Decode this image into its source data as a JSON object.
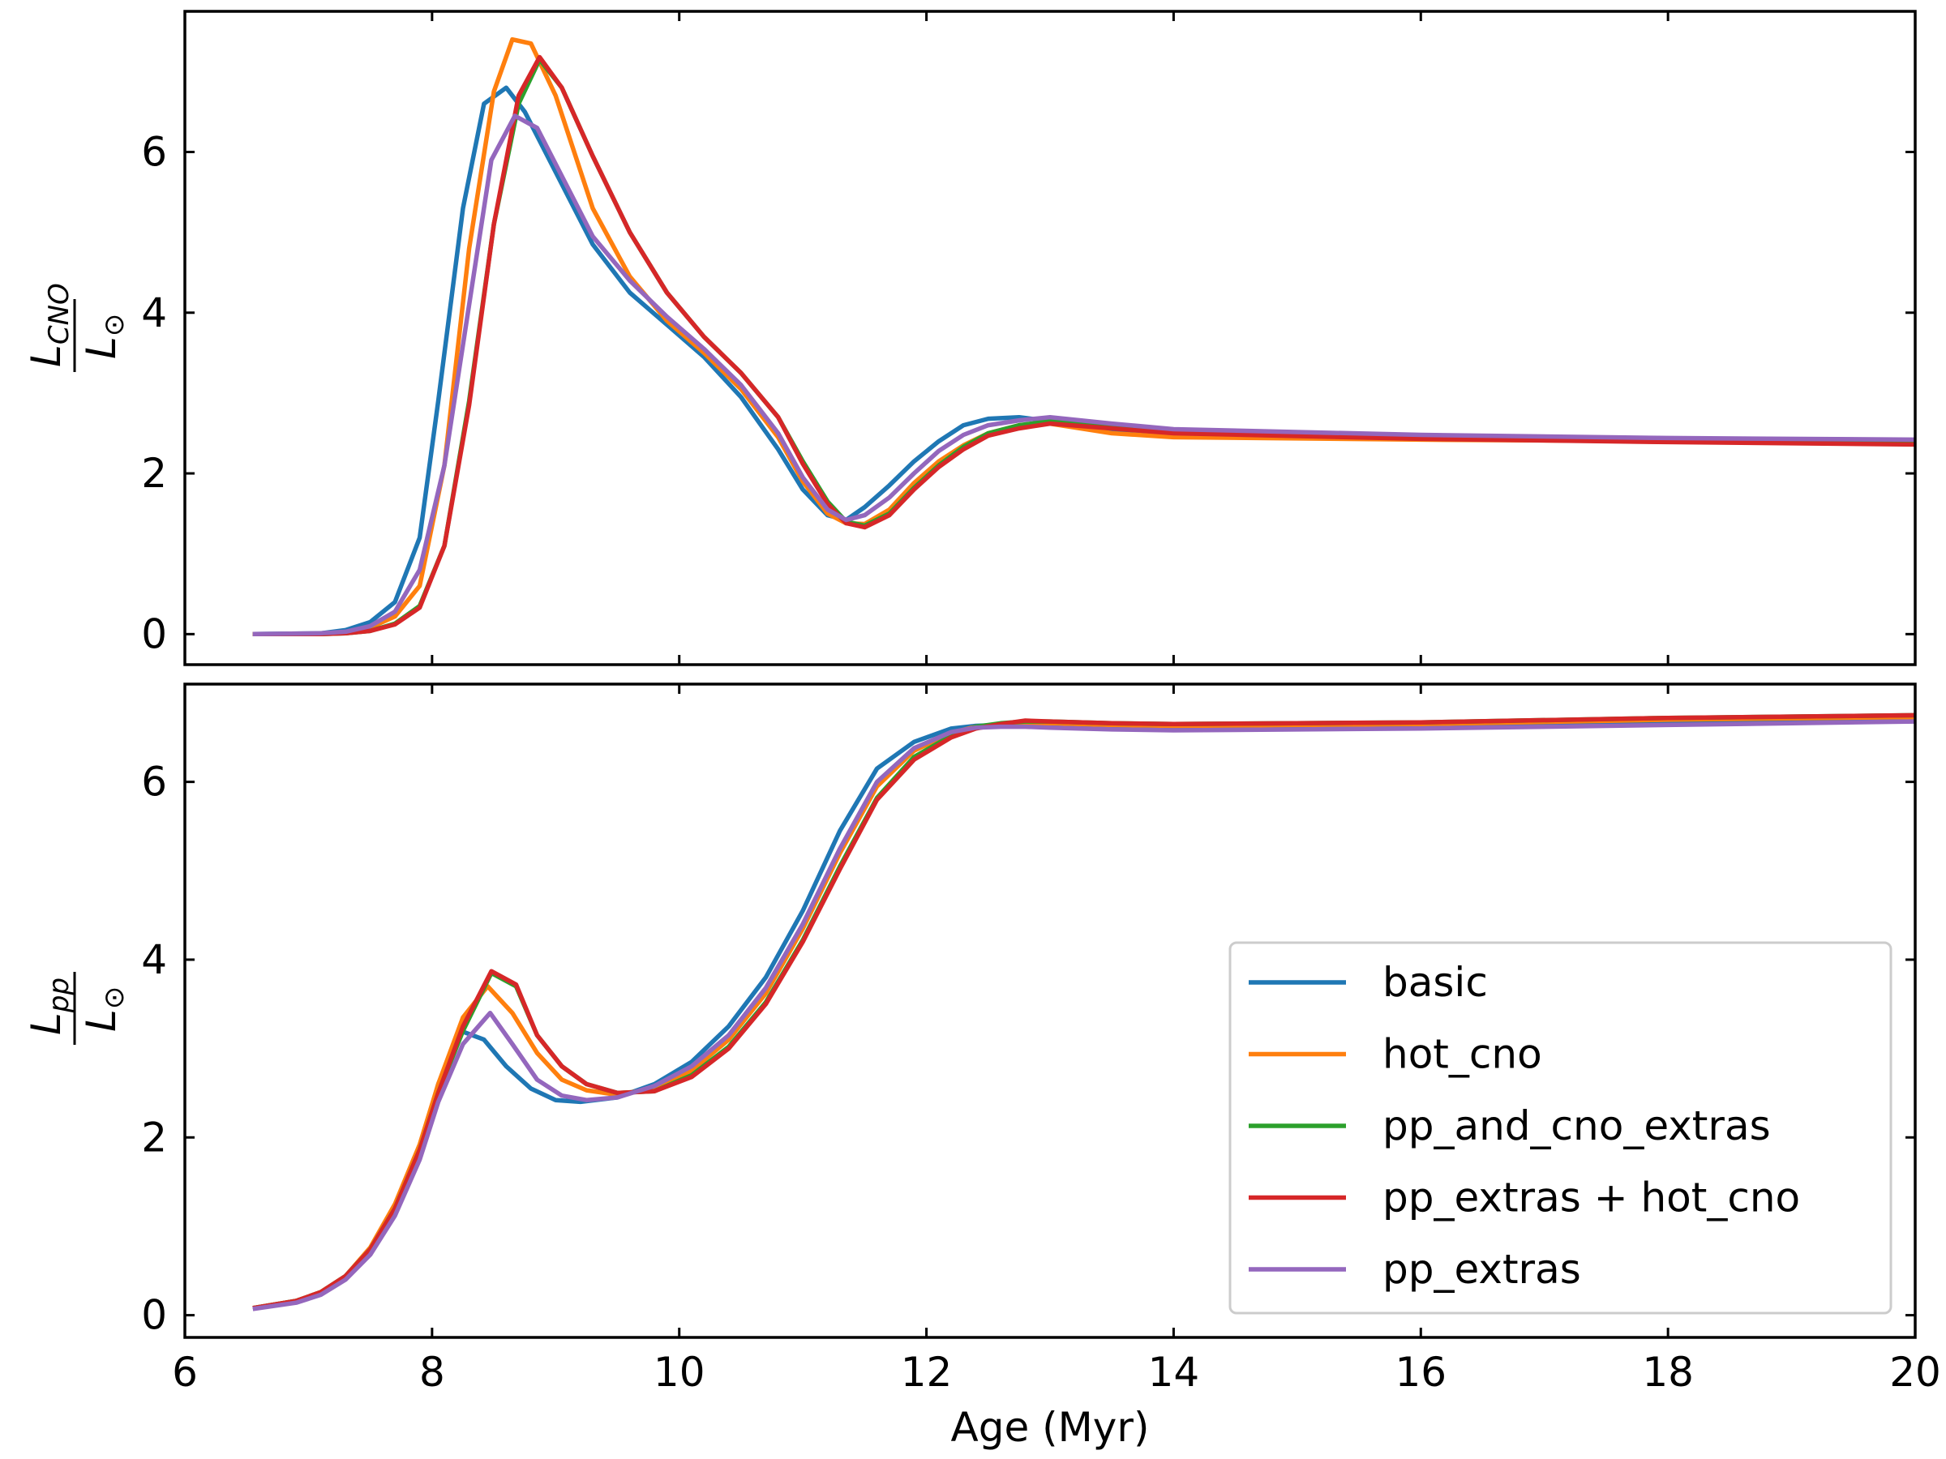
{
  "colors": {
    "basic": "#1f77b4",
    "hot_cno": "#ff7f0e",
    "pp_and_cno_extras": "#2ca02c",
    "pp_extras_hot_cno": "#d62728",
    "pp_extras": "#9467bd"
  },
  "chart_data": [
    {
      "type": "line",
      "panel": "top",
      "ylabel_main": "L",
      "ylabel_sub": "CNO",
      "ylabel_den": "L",
      "ylabel_den_sub": "⊙",
      "xlim": [
        6,
        20
      ],
      "ylim": [
        -0.38,
        7.75
      ],
      "yticks": [
        0,
        2,
        4,
        6
      ],
      "xticks": [
        6,
        8,
        10,
        12,
        14,
        16,
        18,
        20
      ],
      "grid": false,
      "series": [
        {
          "name": "basic",
          "color_key": "basic",
          "x": [
            6.55,
            7.1,
            7.3,
            7.5,
            7.7,
            7.9,
            8.05,
            8.25,
            8.42,
            8.6,
            8.75,
            9.0,
            9.3,
            9.6,
            9.9,
            10.2,
            10.5,
            10.8,
            11.0,
            11.2,
            11.35,
            11.5,
            11.7,
            11.9,
            12.1,
            12.3,
            12.5,
            12.75,
            13.0,
            13.5,
            14,
            16,
            18,
            20
          ],
          "y": [
            0,
            0.01,
            0.05,
            0.15,
            0.4,
            1.2,
            2.9,
            5.3,
            6.6,
            6.8,
            6.5,
            5.75,
            4.85,
            4.25,
            3.85,
            3.45,
            2.95,
            2.3,
            1.8,
            1.48,
            1.42,
            1.58,
            1.85,
            2.15,
            2.4,
            2.6,
            2.68,
            2.7,
            2.65,
            2.55,
            2.5,
            2.45,
            2.42,
            2.4
          ]
        },
        {
          "name": "hot_cno",
          "color_key": "hot_cno",
          "x": [
            6.55,
            7.1,
            7.3,
            7.5,
            7.7,
            7.9,
            8.1,
            8.3,
            8.5,
            8.65,
            8.8,
            9.0,
            9.3,
            9.6,
            9.9,
            10.2,
            10.5,
            10.8,
            11.0,
            11.2,
            11.35,
            11.5,
            11.7,
            11.9,
            12.1,
            12.3,
            12.5,
            12.75,
            13.0,
            13.5,
            14,
            16,
            18,
            20
          ],
          "y": [
            0,
            0,
            0.02,
            0.08,
            0.22,
            0.6,
            2.1,
            4.8,
            6.75,
            7.4,
            7.35,
            6.7,
            5.3,
            4.45,
            3.9,
            3.5,
            3.05,
            2.45,
            1.9,
            1.5,
            1.38,
            1.37,
            1.55,
            1.88,
            2.15,
            2.35,
            2.5,
            2.6,
            2.62,
            2.5,
            2.45,
            2.42,
            2.4,
            2.38
          ]
        },
        {
          "name": "pp_and_cno_extras",
          "color_key": "pp_and_cno_extras",
          "x": [
            6.55,
            7.1,
            7.3,
            7.5,
            7.7,
            7.9,
            8.1,
            8.3,
            8.5,
            8.7,
            8.87,
            9.05,
            9.3,
            9.6,
            9.9,
            10.2,
            10.5,
            10.8,
            11.0,
            11.2,
            11.35,
            11.5,
            11.7,
            11.9,
            12.1,
            12.3,
            12.5,
            12.75,
            13.0,
            13.5,
            14,
            16,
            18,
            20
          ],
          "y": [
            0,
            0,
            0.01,
            0.04,
            0.13,
            0.35,
            1.1,
            2.9,
            5.1,
            6.6,
            7.15,
            6.8,
            5.95,
            5.0,
            4.25,
            3.7,
            3.25,
            2.7,
            2.15,
            1.65,
            1.4,
            1.35,
            1.5,
            1.82,
            2.1,
            2.33,
            2.5,
            2.6,
            2.65,
            2.58,
            2.52,
            2.45,
            2.41,
            2.38
          ]
        },
        {
          "name": "pp_extras + hot_cno",
          "color_key": "pp_extras_hot_cno",
          "x": [
            6.55,
            7.1,
            7.3,
            7.5,
            7.7,
            7.9,
            8.1,
            8.3,
            8.5,
            8.7,
            8.87,
            9.05,
            9.3,
            9.6,
            9.9,
            10.2,
            10.5,
            10.8,
            11.0,
            11.2,
            11.35,
            11.5,
            11.7,
            11.9,
            12.1,
            12.3,
            12.5,
            12.75,
            13.0,
            13.5,
            14,
            16,
            18,
            20
          ],
          "y": [
            0,
            0,
            0.01,
            0.04,
            0.12,
            0.33,
            1.1,
            2.85,
            5.1,
            6.7,
            7.18,
            6.8,
            5.95,
            5.0,
            4.25,
            3.7,
            3.25,
            2.7,
            2.12,
            1.62,
            1.38,
            1.33,
            1.48,
            1.8,
            2.08,
            2.3,
            2.47,
            2.56,
            2.62,
            2.56,
            2.5,
            2.43,
            2.39,
            2.36
          ]
        },
        {
          "name": "pp_extras",
          "color_key": "pp_extras",
          "x": [
            6.55,
            7.1,
            7.3,
            7.5,
            7.7,
            7.9,
            8.1,
            8.3,
            8.48,
            8.67,
            8.85,
            9.05,
            9.3,
            9.6,
            9.9,
            10.2,
            10.5,
            10.8,
            11.0,
            11.2,
            11.35,
            11.5,
            11.7,
            11.9,
            12.1,
            12.3,
            12.5,
            12.75,
            13.0,
            13.5,
            14,
            16,
            18,
            20
          ],
          "y": [
            0,
            0.01,
            0.03,
            0.1,
            0.28,
            0.8,
            2.1,
            4.1,
            5.9,
            6.45,
            6.3,
            5.7,
            4.95,
            4.4,
            3.95,
            3.55,
            3.1,
            2.5,
            1.95,
            1.55,
            1.42,
            1.48,
            1.7,
            2.0,
            2.28,
            2.48,
            2.6,
            2.66,
            2.7,
            2.62,
            2.55,
            2.48,
            2.44,
            2.42
          ]
        }
      ]
    },
    {
      "type": "line",
      "panel": "bottom",
      "ylabel_main": "L",
      "ylabel_sub": "pp",
      "ylabel_den": "L",
      "ylabel_den_sub": "⊙",
      "xlabel": "Age (Myr)",
      "xlim": [
        6,
        20
      ],
      "ylim": [
        -0.25,
        7.1
      ],
      "yticks": [
        0,
        2,
        4,
        6
      ],
      "xticks": [
        6,
        8,
        10,
        12,
        14,
        16,
        18,
        20
      ],
      "grid": false,
      "legend_position": "lower right",
      "series": [
        {
          "name": "basic",
          "color_key": "basic",
          "x": [
            6.55,
            6.9,
            7.1,
            7.3,
            7.5,
            7.7,
            7.9,
            8.05,
            8.23,
            8.42,
            8.6,
            8.8,
            9.0,
            9.2,
            9.5,
            9.8,
            10.1,
            10.4,
            10.7,
            11.0,
            11.3,
            11.6,
            11.9,
            12.2,
            12.4,
            12.6,
            12.8,
            13.0,
            13.5,
            14,
            16,
            18,
            20
          ],
          "y": [
            0.08,
            0.16,
            0.25,
            0.42,
            0.72,
            1.2,
            1.88,
            2.6,
            3.2,
            3.1,
            2.8,
            2.55,
            2.42,
            2.4,
            2.45,
            2.6,
            2.85,
            3.25,
            3.8,
            4.55,
            5.45,
            6.15,
            6.45,
            6.6,
            6.63,
            6.64,
            6.63,
            6.62,
            6.6,
            6.6,
            6.62,
            6.66,
            6.7
          ]
        },
        {
          "name": "hot_cno",
          "color_key": "hot_cno",
          "x": [
            6.55,
            6.9,
            7.1,
            7.3,
            7.5,
            7.7,
            7.9,
            8.05,
            8.25,
            8.45,
            8.65,
            8.85,
            9.05,
            9.25,
            9.5,
            9.8,
            10.1,
            10.4,
            10.7,
            11.0,
            11.3,
            11.6,
            11.9,
            12.2,
            12.4,
            12.6,
            12.8,
            13.0,
            13.5,
            14,
            16,
            18,
            20
          ],
          "y": [
            0.08,
            0.16,
            0.26,
            0.44,
            0.76,
            1.25,
            1.92,
            2.6,
            3.35,
            3.7,
            3.4,
            2.95,
            2.65,
            2.53,
            2.48,
            2.55,
            2.75,
            3.1,
            3.62,
            4.35,
            5.2,
            5.95,
            6.35,
            6.55,
            6.62,
            6.65,
            6.66,
            6.66,
            6.64,
            6.63,
            6.65,
            6.7,
            6.73
          ]
        },
        {
          "name": "pp_and_cno_extras",
          "color_key": "pp_and_cno_extras",
          "x": [
            6.55,
            6.9,
            7.1,
            7.3,
            7.5,
            7.7,
            7.9,
            8.05,
            8.25,
            8.48,
            8.68,
            8.85,
            9.05,
            9.25,
            9.5,
            9.8,
            10.1,
            10.4,
            10.7,
            11.0,
            11.3,
            11.6,
            11.9,
            12.2,
            12.4,
            12.6,
            12.8,
            13.0,
            13.5,
            14,
            16,
            18,
            20
          ],
          "y": [
            0.08,
            0.16,
            0.26,
            0.44,
            0.74,
            1.2,
            1.86,
            2.5,
            3.2,
            3.85,
            3.7,
            3.15,
            2.8,
            2.6,
            2.5,
            2.52,
            2.7,
            3.02,
            3.52,
            4.22,
            5.05,
            5.82,
            6.28,
            6.52,
            6.62,
            6.66,
            6.68,
            6.68,
            6.66,
            6.65,
            6.67,
            6.72,
            6.75
          ]
        },
        {
          "name": "pp_extras + hot_cno",
          "color_key": "pp_extras_hot_cno",
          "x": [
            6.55,
            6.9,
            7.1,
            7.3,
            7.5,
            7.7,
            7.9,
            8.05,
            8.25,
            8.48,
            8.68,
            8.85,
            9.05,
            9.25,
            9.5,
            9.8,
            10.1,
            10.4,
            10.7,
            11.0,
            11.3,
            11.6,
            11.9,
            12.2,
            12.4,
            12.6,
            12.8,
            13.0,
            13.5,
            14,
            16,
            18,
            20
          ],
          "y": [
            0.08,
            0.16,
            0.26,
            0.44,
            0.74,
            1.2,
            1.86,
            2.5,
            3.25,
            3.87,
            3.72,
            3.15,
            2.8,
            2.6,
            2.5,
            2.52,
            2.68,
            3.0,
            3.5,
            4.2,
            5.02,
            5.8,
            6.25,
            6.5,
            6.6,
            6.65,
            6.69,
            6.68,
            6.66,
            6.65,
            6.67,
            6.72,
            6.75
          ]
        },
        {
          "name": "pp_extras",
          "color_key": "pp_extras",
          "x": [
            6.55,
            6.9,
            7.1,
            7.3,
            7.5,
            7.7,
            7.9,
            8.05,
            8.25,
            8.47,
            8.65,
            8.85,
            9.05,
            9.25,
            9.5,
            9.8,
            10.1,
            10.4,
            10.7,
            11.0,
            11.3,
            11.6,
            11.9,
            12.2,
            12.4,
            12.6,
            12.8,
            13.0,
            13.5,
            14,
            16,
            18,
            20
          ],
          "y": [
            0.07,
            0.14,
            0.23,
            0.4,
            0.68,
            1.12,
            1.75,
            2.4,
            3.05,
            3.4,
            3.05,
            2.65,
            2.47,
            2.42,
            2.45,
            2.58,
            2.8,
            3.15,
            3.68,
            4.4,
            5.25,
            6.0,
            6.38,
            6.56,
            6.61,
            6.62,
            6.62,
            6.61,
            6.59,
            6.58,
            6.6,
            6.64,
            6.68
          ]
        }
      ]
    }
  ],
  "legend": {
    "items": [
      {
        "label": "basic",
        "color_key": "basic"
      },
      {
        "label": "hot_cno",
        "color_key": "hot_cno"
      },
      {
        "label": "pp_and_cno_extras",
        "color_key": "pp_and_cno_extras"
      },
      {
        "label": "pp_extras + hot_cno",
        "color_key": "pp_extras_hot_cno"
      },
      {
        "label": "pp_extras",
        "color_key": "pp_extras"
      }
    ]
  }
}
